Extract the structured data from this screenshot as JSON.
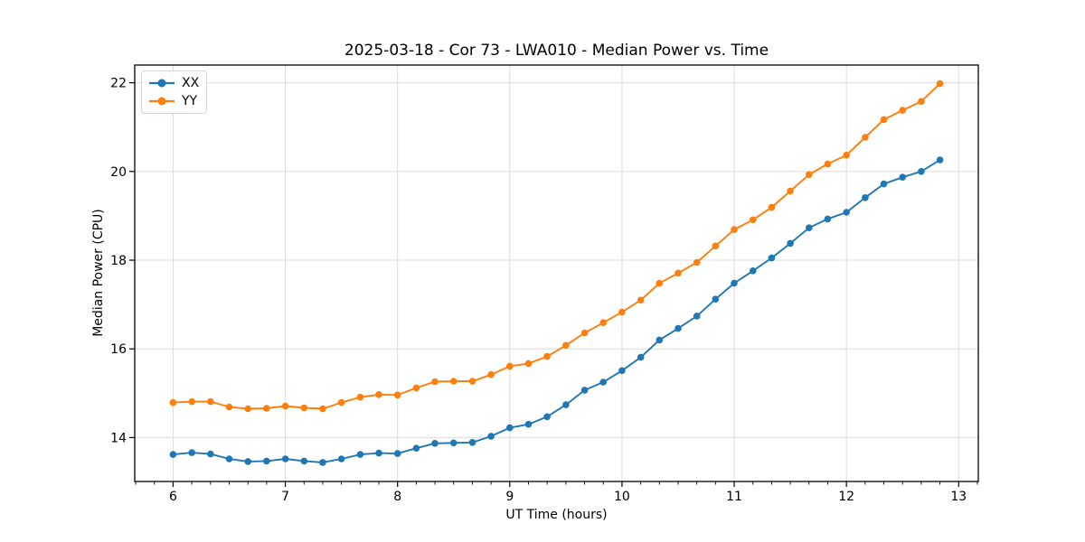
{
  "figure": {
    "background": "#ffffff"
  },
  "styles": {
    "grid_color": "#dcdcdc",
    "spine_color": "#000000",
    "text_color": "#000000",
    "legend_border": "#d4d4d4"
  },
  "legend": {
    "items": [
      {
        "label": "XX",
        "color": "#1f77b4"
      },
      {
        "label": "YY",
        "color": "#ff7f0e"
      }
    ]
  },
  "chart_data": {
    "type": "line",
    "title": "2025-03-18 - Cor 73 - LWA010 - Median Power vs. Time",
    "xlabel": "UT Time (hours)",
    "ylabel": "Median Power (CPU)",
    "xlim": [
      5.658,
      13.175
    ],
    "ylim": [
      13.01,
      22.4
    ],
    "x_ticks": [
      6,
      7,
      8,
      9,
      10,
      11,
      12,
      13
    ],
    "y_ticks": [
      14,
      16,
      18,
      20,
      22
    ],
    "x_minor_tick_interval": 0.16667,
    "grid": true,
    "legend_position": "upper-left",
    "marker": "circle",
    "x": [
      6.0,
      6.167,
      6.333,
      6.5,
      6.667,
      6.833,
      7.0,
      7.167,
      7.333,
      7.5,
      7.667,
      7.833,
      8.0,
      8.167,
      8.333,
      8.5,
      8.667,
      8.833,
      9.0,
      9.167,
      9.333,
      9.5,
      9.667,
      9.833,
      10.0,
      10.167,
      10.333,
      10.5,
      10.667,
      10.833,
      11.0,
      11.167,
      11.333,
      11.5,
      11.667,
      11.833,
      12.0,
      12.167,
      12.333,
      12.5,
      12.667,
      12.833
    ],
    "series": [
      {
        "name": "XX",
        "color": "#1f77b4",
        "values": [
          13.62,
          13.66,
          13.63,
          13.52,
          13.46,
          13.47,
          13.52,
          13.47,
          13.44,
          13.52,
          13.62,
          13.65,
          13.64,
          13.76,
          13.87,
          13.88,
          13.89,
          14.03,
          14.22,
          14.3,
          14.47,
          14.74,
          15.07,
          15.25,
          15.51,
          15.81,
          16.2,
          16.46,
          16.74,
          17.12,
          17.48,
          17.76,
          18.05,
          18.38,
          18.73,
          18.93,
          19.08,
          19.41,
          19.72,
          19.87,
          20.0,
          20.26
        ]
      },
      {
        "name": "YY",
        "color": "#ff7f0e",
        "values": [
          14.79,
          14.81,
          14.81,
          14.69,
          14.65,
          14.66,
          14.71,
          14.67,
          14.65,
          14.79,
          14.91,
          14.97,
          14.96,
          15.12,
          15.26,
          15.27,
          15.27,
          15.42,
          15.61,
          15.67,
          15.83,
          16.08,
          16.36,
          16.59,
          16.83,
          17.1,
          17.48,
          17.71,
          17.95,
          18.32,
          18.69,
          18.91,
          19.19,
          19.56,
          19.93,
          20.17,
          20.37,
          20.77,
          21.17,
          21.38,
          21.58,
          21.98
        ]
      }
    ]
  }
}
